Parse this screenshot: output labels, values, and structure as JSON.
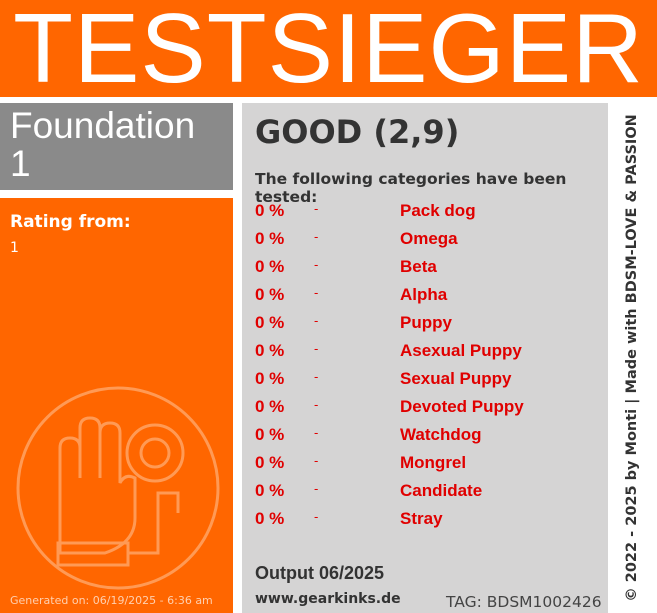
{
  "header": {
    "title": "TESTSIEGER"
  },
  "product": {
    "name": "Foundation 1",
    "rating_label": "Rating from:",
    "rating_value": "1",
    "generated": "Generated on: 06/19/2025 - 6:36 am"
  },
  "result": {
    "grade": "GOOD (2,9)",
    "intro": "The following categories have been tested:",
    "rows": [
      {
        "percent": "0 %",
        "dash": "-",
        "name": "Pack dog"
      },
      {
        "percent": "0 %",
        "dash": "-",
        "name": "Omega"
      },
      {
        "percent": "0 %",
        "dash": "-",
        "name": "Beta"
      },
      {
        "percent": "0 %",
        "dash": "-",
        "name": "Alpha"
      },
      {
        "percent": "0 %",
        "dash": "-",
        "name": "Puppy"
      },
      {
        "percent": "0 %",
        "dash": "-",
        "name": "Asexual Puppy"
      },
      {
        "percent": "0 %",
        "dash": "-",
        "name": "Sexual Puppy"
      },
      {
        "percent": "0 %",
        "dash": "-",
        "name": "Devoted Puppy"
      },
      {
        "percent": "0 %",
        "dash": "-",
        "name": "Watchdog"
      },
      {
        "percent": "0 %",
        "dash": "-",
        "name": "Mongrel"
      },
      {
        "percent": "0 %",
        "dash": "-",
        "name": "Candidate"
      },
      {
        "percent": "0 %",
        "dash": "-",
        "name": "Stray"
      }
    ],
    "output": "Output 06/2025",
    "website": "www.gearkinks.de",
    "tag": "TAG: BDSM1002426"
  },
  "footer": {
    "copyright": "© 2022 - 2025 by Monti | Made with BDSM-LOVE & PASSION"
  }
}
